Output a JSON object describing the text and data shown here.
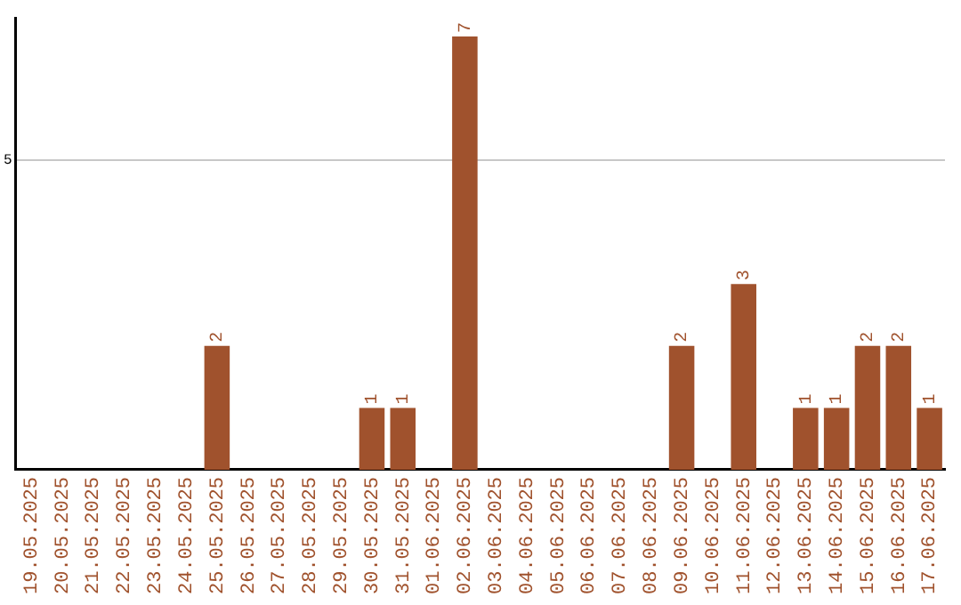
{
  "chart_data": {
    "type": "bar",
    "categories": [
      "19.05.2025",
      "20.05.2025",
      "21.05.2025",
      "22.05.2025",
      "23.05.2025",
      "24.05.2025",
      "25.05.2025",
      "26.05.2025",
      "27.05.2025",
      "28.05.2025",
      "29.05.2025",
      "30.05.2025",
      "31.05.2025",
      "01.06.2025",
      "02.06.2025",
      "03.06.2025",
      "04.06.2025",
      "05.06.2025",
      "06.06.2025",
      "07.06.2025",
      "08.06.2025",
      "09.06.2025",
      "10.06.2025",
      "11.06.2025",
      "12.06.2025",
      "13.06.2025",
      "14.06.2025",
      "15.06.2025",
      "16.06.2025",
      "17.06.2025"
    ],
    "values": [
      0,
      0,
      0,
      0,
      0,
      0,
      2,
      0,
      0,
      0,
      0,
      1,
      1,
      0,
      7,
      0,
      0,
      0,
      0,
      0,
      0,
      2,
      0,
      3,
      0,
      1,
      1,
      2,
      2,
      1
    ],
    "value_labels": [
      null,
      null,
      null,
      null,
      null,
      null,
      "2",
      null,
      null,
      null,
      null,
      "1",
      "1",
      null,
      "7",
      null,
      null,
      null,
      null,
      null,
      null,
      "2",
      null,
      "3",
      null,
      "1",
      "1",
      "2",
      "2",
      "1"
    ],
    "color": "#a0522d",
    "ylim": [
      0,
      7.3
    ],
    "yticks": [
      5
    ],
    "grid": "y"
  }
}
